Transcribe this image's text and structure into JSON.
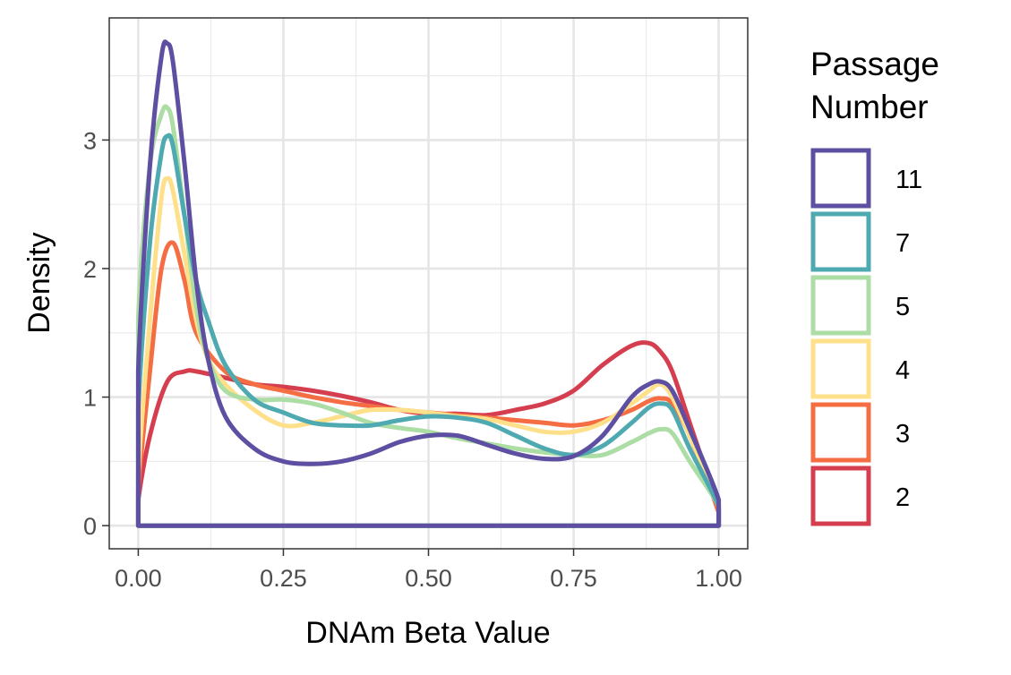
{
  "chart_data": {
    "type": "line",
    "title": "",
    "xlabel": "DNAm Beta Value",
    "ylabel": "Density",
    "xlim": [
      -0.05,
      1.05
    ],
    "ylim": [
      -0.18,
      3.95
    ],
    "x_ticks": [
      0,
      0.25,
      0.5,
      0.75,
      1
    ],
    "x_tick_labels": [
      "0.00",
      "0.25",
      "0.50",
      "0.75",
      "1.00"
    ],
    "y_ticks": [
      0,
      1,
      2,
      3
    ],
    "y_tick_labels": [
      "0",
      "1",
      "2",
      "3"
    ],
    "grid": true,
    "legend": {
      "title_lines": [
        "Passage",
        "Number"
      ],
      "placement": "right"
    },
    "series": [
      {
        "name": "2",
        "color": "#d53e4f",
        "x": [
          0,
          0.02,
          0.05,
          0.08,
          0.1,
          0.15,
          0.2,
          0.25,
          0.3,
          0.35,
          0.4,
          0.45,
          0.5,
          0.55,
          0.6,
          0.65,
          0.7,
          0.75,
          0.8,
          0.85,
          0.88,
          0.9,
          0.92,
          0.95,
          1.0
        ],
        "y": [
          0.2,
          0.7,
          1.12,
          1.2,
          1.2,
          1.15,
          1.1,
          1.08,
          1.05,
          1.01,
          0.96,
          0.9,
          0.87,
          0.87,
          0.86,
          0.9,
          0.95,
          1.05,
          1.25,
          1.4,
          1.42,
          1.35,
          1.2,
          0.8,
          0.12
        ]
      },
      {
        "name": "3",
        "color": "#f46d43",
        "x": [
          0,
          0.02,
          0.04,
          0.06,
          0.08,
          0.1,
          0.15,
          0.2,
          0.25,
          0.3,
          0.35,
          0.4,
          0.45,
          0.5,
          0.55,
          0.6,
          0.65,
          0.7,
          0.75,
          0.8,
          0.85,
          0.88,
          0.9,
          0.92,
          0.95,
          1.0
        ],
        "y": [
          0.3,
          1.2,
          2.0,
          2.2,
          1.9,
          1.5,
          1.2,
          1.1,
          1.05,
          1.0,
          0.96,
          0.93,
          0.9,
          0.88,
          0.86,
          0.84,
          0.82,
          0.8,
          0.78,
          0.82,
          0.9,
          0.97,
          0.99,
          0.95,
          0.7,
          0.1
        ]
      },
      {
        "name": "4",
        "color": "#fee08b",
        "x": [
          0,
          0.02,
          0.04,
          0.05,
          0.06,
          0.08,
          0.1,
          0.12,
          0.15,
          0.2,
          0.25,
          0.3,
          0.35,
          0.4,
          0.45,
          0.5,
          0.55,
          0.6,
          0.65,
          0.7,
          0.75,
          0.8,
          0.85,
          0.88,
          0.9,
          0.92,
          0.95,
          1.0
        ],
        "y": [
          0.4,
          1.6,
          2.55,
          2.7,
          2.6,
          2.1,
          1.6,
          1.3,
          1.1,
          0.9,
          0.78,
          0.8,
          0.85,
          0.9,
          0.9,
          0.88,
          0.85,
          0.83,
          0.78,
          0.73,
          0.73,
          0.8,
          0.95,
          1.05,
          1.1,
          1.0,
          0.7,
          0.15
        ]
      },
      {
        "name": "5",
        "color": "#abdda4",
        "x": [
          0,
          0.02,
          0.04,
          0.05,
          0.06,
          0.08,
          0.1,
          0.12,
          0.15,
          0.2,
          0.25,
          0.3,
          0.35,
          0.4,
          0.45,
          0.5,
          0.55,
          0.6,
          0.65,
          0.7,
          0.75,
          0.8,
          0.85,
          0.88,
          0.9,
          0.92,
          0.95,
          1.0
        ],
        "y": [
          1.6,
          2.8,
          3.2,
          3.25,
          3.1,
          2.4,
          1.7,
          1.3,
          1.05,
          0.98,
          0.98,
          0.95,
          0.88,
          0.8,
          0.76,
          0.73,
          0.68,
          0.64,
          0.6,
          0.57,
          0.55,
          0.55,
          0.65,
          0.72,
          0.75,
          0.72,
          0.5,
          0.15
        ]
      },
      {
        "name": "7",
        "color": "#4ea9b0",
        "x": [
          0,
          0.02,
          0.04,
          0.05,
          0.06,
          0.08,
          0.1,
          0.12,
          0.15,
          0.2,
          0.25,
          0.3,
          0.35,
          0.4,
          0.45,
          0.5,
          0.55,
          0.6,
          0.65,
          0.7,
          0.75,
          0.8,
          0.85,
          0.88,
          0.9,
          0.92,
          0.95,
          1.0
        ],
        "y": [
          0.9,
          2.2,
          2.9,
          3.03,
          2.95,
          2.4,
          1.9,
          1.6,
          1.25,
          0.98,
          0.88,
          0.8,
          0.78,
          0.78,
          0.82,
          0.85,
          0.84,
          0.8,
          0.7,
          0.6,
          0.55,
          0.62,
          0.8,
          0.92,
          0.95,
          0.9,
          0.6,
          0.15
        ]
      },
      {
        "name": "11",
        "color": "#5e4fa2",
        "x": [
          0,
          0.02,
          0.04,
          0.05,
          0.06,
          0.08,
          0.1,
          0.12,
          0.15,
          0.2,
          0.25,
          0.3,
          0.35,
          0.4,
          0.45,
          0.5,
          0.55,
          0.6,
          0.65,
          0.7,
          0.75,
          0.8,
          0.85,
          0.88,
          0.9,
          0.92,
          0.95,
          1.0
        ],
        "y": [
          1.2,
          2.8,
          3.65,
          3.75,
          3.6,
          2.8,
          1.9,
          1.3,
          0.85,
          0.6,
          0.5,
          0.48,
          0.5,
          0.56,
          0.65,
          0.7,
          0.7,
          0.63,
          0.56,
          0.52,
          0.54,
          0.7,
          1.0,
          1.1,
          1.12,
          1.05,
          0.75,
          0.2
        ]
      }
    ]
  }
}
